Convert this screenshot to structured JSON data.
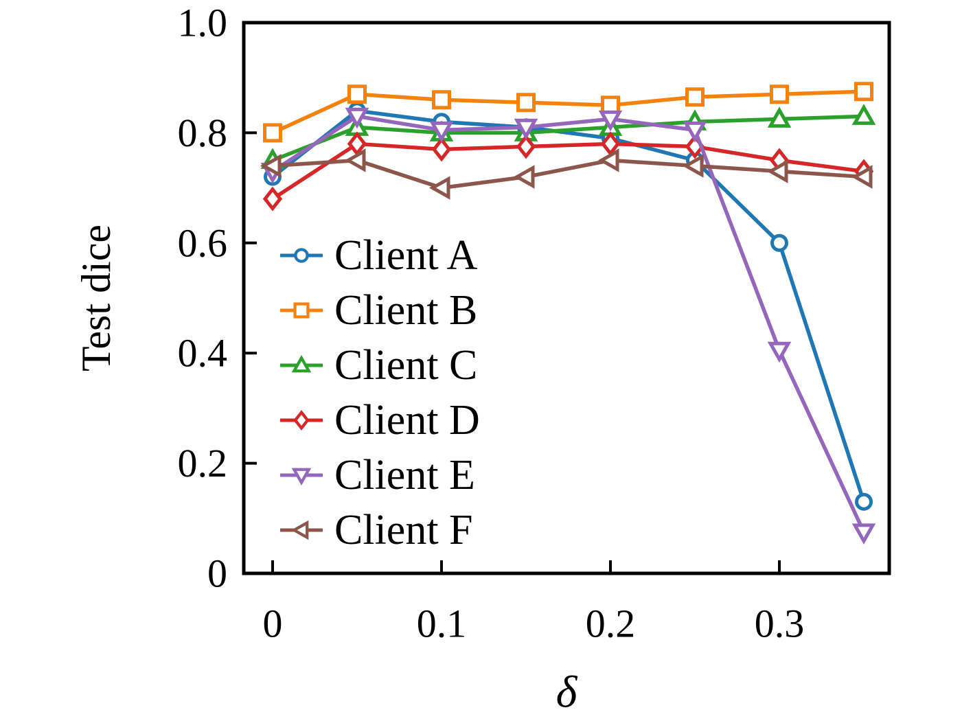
{
  "chart_data": {
    "type": "line",
    "title": "",
    "xlabel": "δ",
    "ylabel": "Test dice",
    "x": [
      0,
      0.05,
      0.1,
      0.15,
      0.2,
      0.25,
      0.3,
      0.35
    ],
    "xlim": [
      -0.017,
      0.365
    ],
    "ylim": [
      0,
      1.0
    ],
    "grid": false,
    "xticks": {
      "values": [
        0,
        0.1,
        0.2,
        0.3
      ],
      "labels": [
        "0",
        "0.1",
        "0.2",
        "0.3"
      ]
    },
    "yticks": {
      "values": [
        0,
        0.2,
        0.4,
        0.6,
        0.8,
        1.0
      ],
      "labels": [
        "0",
        "0.2",
        "0.4",
        "0.6",
        "0.8",
        "1.0"
      ]
    },
    "legend": {
      "position": "inside-center-left",
      "frame": false
    },
    "series": [
      {
        "name": "Client A",
        "color": "#1f77b4",
        "marker": "circle",
        "values": [
          0.72,
          0.84,
          0.82,
          0.81,
          0.79,
          0.75,
          0.6,
          0.13
        ]
      },
      {
        "name": "Client B",
        "color": "#f5820e",
        "marker": "square",
        "values": [
          0.8,
          0.87,
          0.86,
          0.855,
          0.85,
          0.865,
          0.87,
          0.875
        ]
      },
      {
        "name": "Client C",
        "color": "#2ca02c",
        "marker": "triangle-up",
        "values": [
          0.75,
          0.81,
          0.8,
          0.8,
          0.81,
          0.82,
          0.825,
          0.83
        ]
      },
      {
        "name": "Client D",
        "color": "#d62728",
        "marker": "diamond",
        "values": [
          0.68,
          0.78,
          0.77,
          0.775,
          0.78,
          0.775,
          0.75,
          0.73
        ]
      },
      {
        "name": "Client E",
        "color": "#9467bd",
        "marker": "triangle-down",
        "values": [
          0.73,
          0.83,
          0.805,
          0.81,
          0.825,
          0.805,
          0.405,
          0.075
        ]
      },
      {
        "name": "Client F",
        "color": "#8c564b",
        "marker": "triangle-left",
        "values": [
          0.74,
          0.75,
          0.7,
          0.72,
          0.75,
          0.74,
          0.73,
          0.72
        ]
      }
    ]
  }
}
